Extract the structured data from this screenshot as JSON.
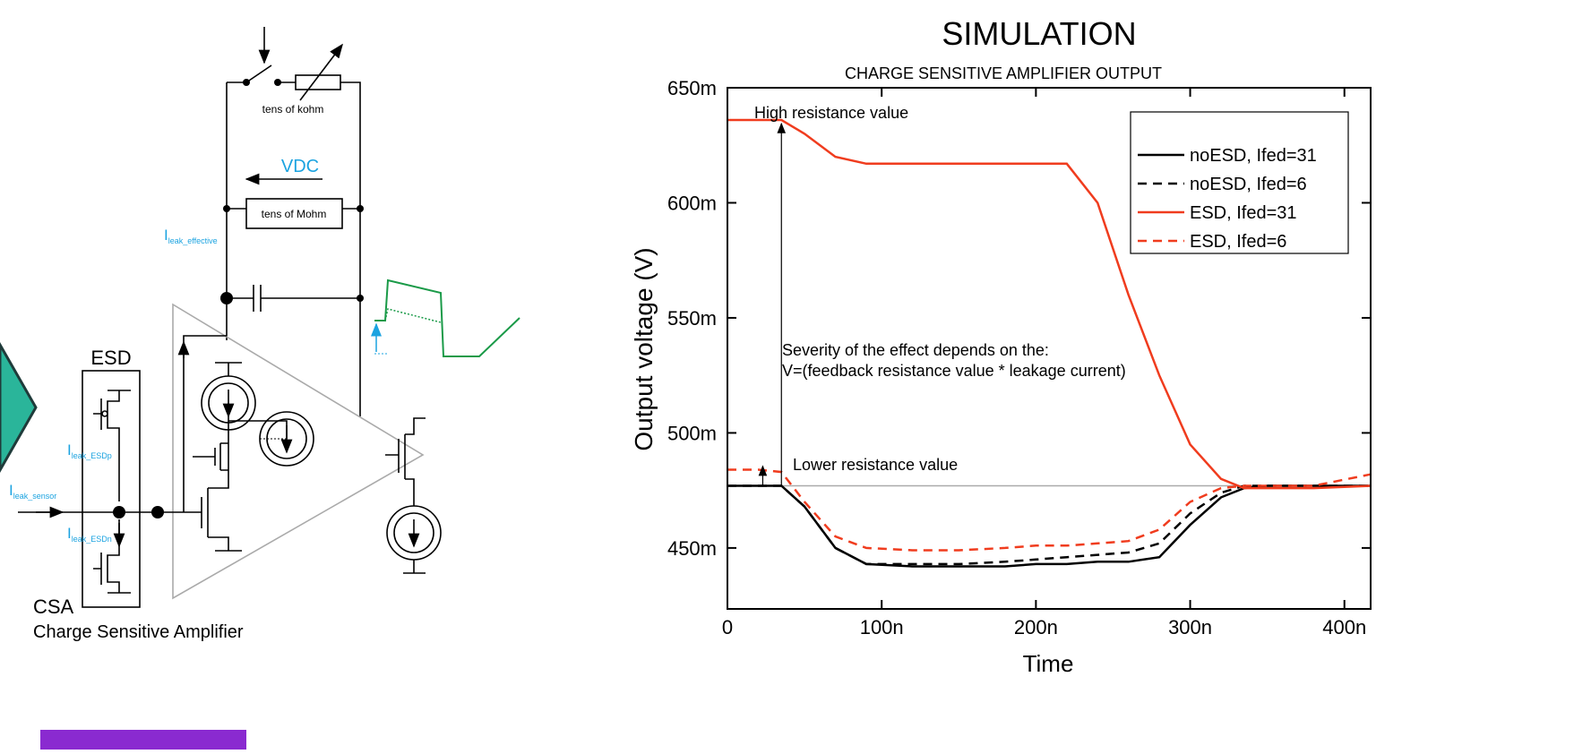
{
  "slide_title": "SIMULATION",
  "diagram": {
    "feedback_switch_label": "tens of kohm",
    "vdc_label": "VDC",
    "feedback_resistor_label": "tens of Mohm",
    "leak_effective": {
      "main": "I",
      "sub": "leak_effective"
    },
    "esd_label": "ESD",
    "leak_esdp": {
      "main": "I",
      "sub": "leak_ESDp"
    },
    "leak_sensor": {
      "main": "I",
      "sub": "leak_sensor"
    },
    "leak_esdn": {
      "main": "I",
      "sub": "leak_ESDn"
    },
    "csa_label": "CSA",
    "csa_caption": "Charge Sensitive Amplifier"
  },
  "chart_data": {
    "type": "line",
    "title": "CHARGE SENSITIVE AMPLIFIER OUTPUT",
    "xlabel": "Time",
    "ylabel": "Output voltage (V)",
    "x": [
      0,
      2e-08,
      3.5e-08,
      5e-08,
      7e-08,
      9e-08,
      1.2e-07,
      1.5e-07,
      1.8e-07,
      2e-07,
      2.2e-07,
      2.4e-07,
      2.6e-07,
      2.8e-07,
      3e-07,
      3.2e-07,
      3.35e-07,
      3.5e-07,
      3.8e-07,
      4.17e-07
    ],
    "xlim": [
      0,
      4.17e-07
    ],
    "xticks": [
      0,
      {
        "value": 1e-07,
        "label": "100n"
      },
      {
        "value": 2e-07,
        "label": "200n"
      },
      {
        "value": 3e-07,
        "label": "300n"
      },
      {
        "value": 4e-07,
        "label": "400n"
      }
    ],
    "ylim": [
      0.4235,
      0.65
    ],
    "yticks": [
      {
        "value": 0.45,
        "label": "450m"
      },
      {
        "value": 0.5,
        "label": "500m"
      },
      {
        "value": 0.55,
        "label": "550m"
      },
      {
        "value": 0.6,
        "label": "600m"
      },
      {
        "value": 0.65,
        "label": "650m"
      }
    ],
    "series": [
      {
        "name": "noESD, Ifed=31",
        "color": "#000000",
        "style": "solid",
        "values": [
          0.477,
          0.477,
          0.477,
          0.468,
          0.45,
          0.443,
          0.442,
          0.442,
          0.442,
          0.443,
          0.443,
          0.444,
          0.444,
          0.446,
          0.46,
          0.472,
          0.476,
          0.477,
          0.477,
          0.477
        ]
      },
      {
        "name": "noESD, Ifed=6",
        "color": "#000000",
        "style": "dashed",
        "values": [
          0.477,
          0.477,
          0.477,
          0.468,
          0.45,
          0.443,
          0.443,
          0.443,
          0.444,
          0.445,
          0.446,
          0.447,
          0.448,
          0.452,
          0.465,
          0.474,
          0.477,
          0.477,
          0.477,
          0.477
        ]
      },
      {
        "name": "ESD, Ifed=31",
        "color": "#f03c1e",
        "style": "solid",
        "values": [
          0.636,
          0.636,
          0.636,
          0.63,
          0.62,
          0.617,
          0.617,
          0.617,
          0.617,
          0.617,
          0.617,
          0.6,
          0.56,
          0.525,
          0.495,
          0.48,
          0.476,
          0.476,
          0.476,
          0.477
        ]
      },
      {
        "name": "ESD, Ifed=6",
        "color": "#f03c1e",
        "style": "dashed",
        "values": [
          0.484,
          0.484,
          0.483,
          0.47,
          0.455,
          0.45,
          0.449,
          0.449,
          0.45,
          0.451,
          0.451,
          0.452,
          0.453,
          0.458,
          0.47,
          0.476,
          0.477,
          0.477,
          0.477,
          0.482
        ]
      }
    ],
    "reference_line": 0.477,
    "annotations": [
      "High resistance value",
      "Lower resistance value",
      "Severity of the effect depends on the:",
      "V=(feedback resistance value *  leakage current)"
    ],
    "legend": "upper right"
  }
}
